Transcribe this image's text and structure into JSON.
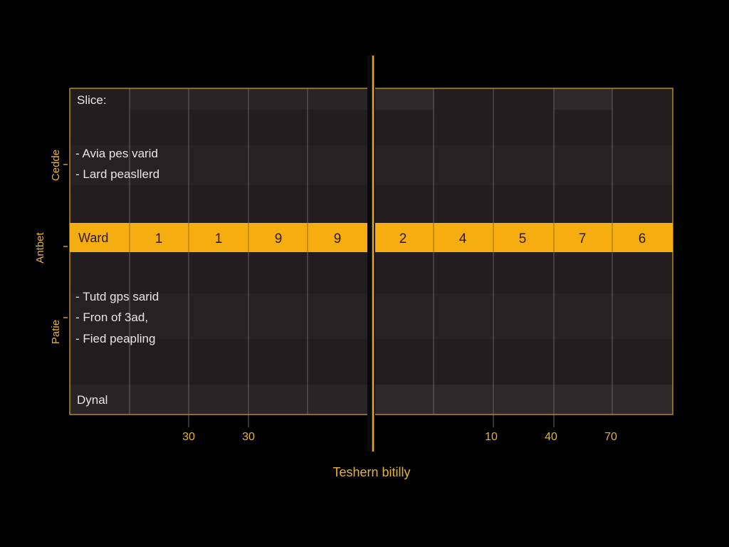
{
  "colors": {
    "background": "#000000",
    "panel": "#231d20",
    "panel_alt": "#2a2427",
    "band": "#f5ad10",
    "border": "#b5891e",
    "text": "#e9e4e6",
    "band_text": "#2a1c0a",
    "accent_text": "#e7b23a"
  },
  "chart_data": {
    "type": "table",
    "left_panel": {
      "header": "Slice:",
      "bullets_top": [
        "- Avia pes varid",
        "- Lard peasllerd"
      ],
      "bullets_bottom": [
        "- Tutd gps sarid",
        "- Fron of 3ad,",
        "- Fied peapling"
      ],
      "footer": "Dynal"
    },
    "band": {
      "label": "Ward",
      "values": [
        1,
        1,
        9,
        9,
        2,
        4,
        5,
        7,
        6
      ]
    },
    "left_axis_labels": [
      "Cedde",
      "Antbet",
      "Patie"
    ],
    "x_tick_labels": [
      "30",
      "30",
      "10",
      "40",
      "70"
    ],
    "xlabel": "Teshern bitilly"
  }
}
